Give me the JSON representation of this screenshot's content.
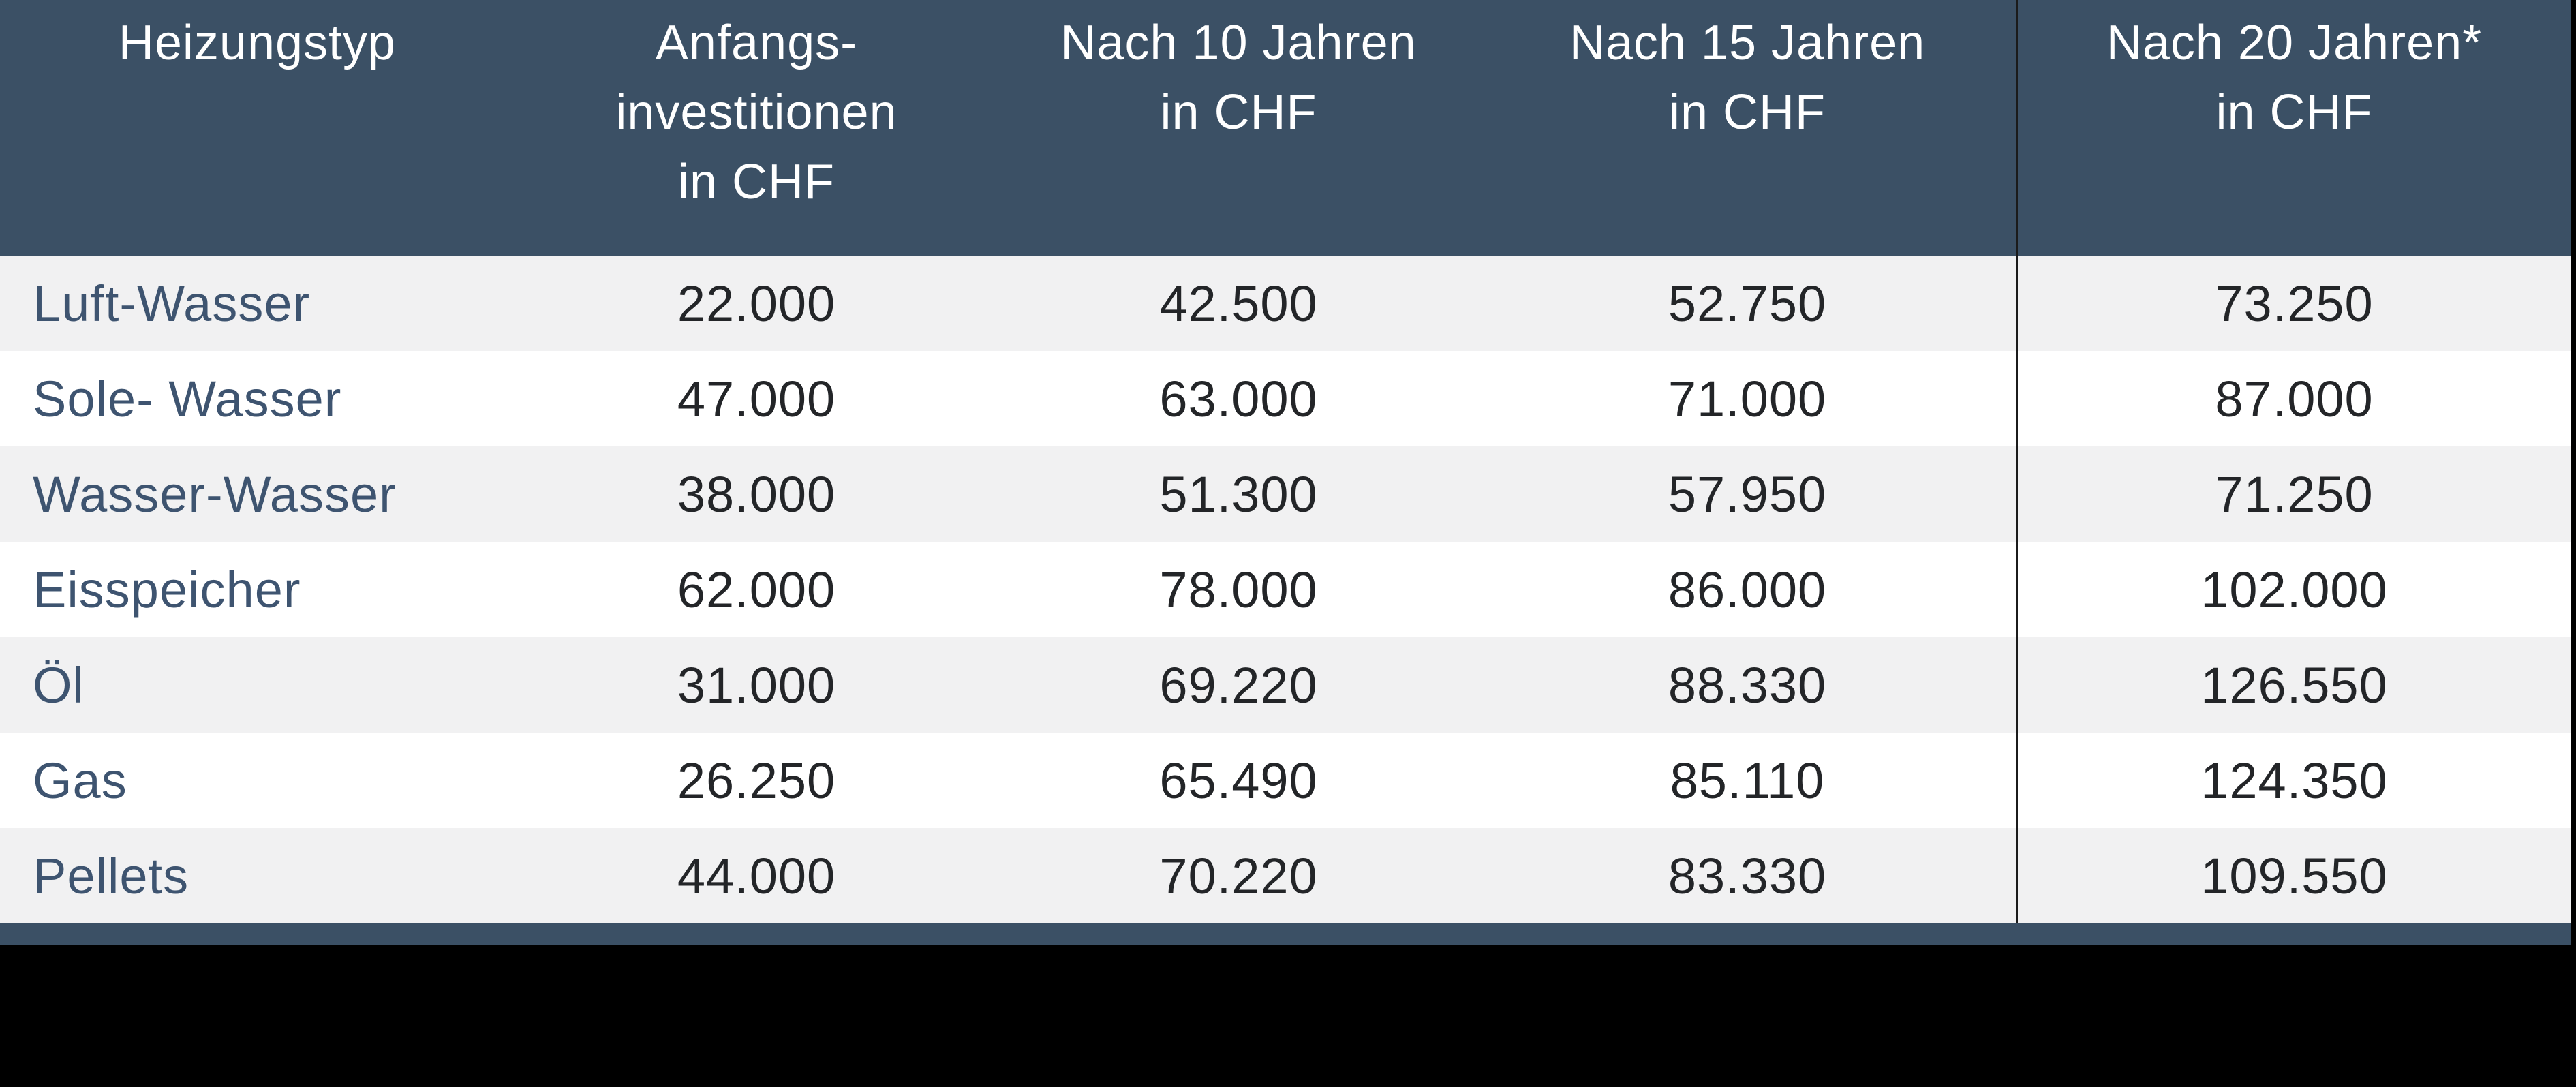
{
  "colors": {
    "header_bg": "#3B5065",
    "row_alt_bg": "#F1F1F2",
    "row_bg": "#FFFFFF",
    "label_color": "#3E5470",
    "value_color": "#232528",
    "header_text": "#FFFFFF",
    "divider": "#1B1B1B",
    "page_bg": "#000000"
  },
  "table": {
    "columns": [
      {
        "lines": [
          "Heizungstyp"
        ]
      },
      {
        "lines": [
          "Anfangs-",
          "investitionen",
          "in CHF"
        ]
      },
      {
        "lines": [
          "Nach 10 Jahren",
          "in CHF"
        ]
      },
      {
        "lines": [
          "Nach 15 Jahren",
          "in CHF"
        ]
      },
      {
        "lines": [
          "Nach 20 Jahren*",
          "in CHF"
        ]
      }
    ],
    "rows": [
      {
        "label": "Luft-Wasser",
        "values": [
          "22.000",
          "42.500",
          "52.750",
          "73.250"
        ]
      },
      {
        "label": "Sole- Wasser",
        "values": [
          "47.000",
          "63.000",
          "71.000",
          "87.000"
        ]
      },
      {
        "label": "Wasser-Wasser",
        "values": [
          "38.000",
          "51.300",
          "57.950",
          "71.250"
        ]
      },
      {
        "label": "Eisspeicher",
        "values": [
          "62.000",
          "78.000",
          "86.000",
          "102.000"
        ]
      },
      {
        "label": "Öl",
        "values": [
          "31.000",
          "69.220",
          "88.330",
          "126.550"
        ]
      },
      {
        "label": "Gas",
        "values": [
          "26.250",
          "65.490",
          "85.110",
          "124.350"
        ]
      },
      {
        "label": "Pellets",
        "values": [
          "44.000",
          "70.220",
          "83.330",
          "109.550"
        ]
      }
    ]
  },
  "chart_data": {
    "type": "table",
    "title": "",
    "columns": [
      "Heizungstyp",
      "Anfangs-investitionen in CHF",
      "Nach 10 Jahren in CHF",
      "Nach 15 Jahren in CHF",
      "Nach 20 Jahren* in CHF"
    ],
    "rows": [
      [
        "Luft-Wasser",
        22000,
        42500,
        52750,
        73250
      ],
      [
        "Sole- Wasser",
        47000,
        63000,
        71000,
        87000
      ],
      [
        "Wasser-Wasser",
        38000,
        51300,
        57950,
        71250
      ],
      [
        "Eisspeicher",
        62000,
        78000,
        86000,
        102000
      ],
      [
        "Öl",
        31000,
        69220,
        88330,
        126550
      ],
      [
        "Gas",
        26250,
        65490,
        85110,
        124350
      ],
      [
        "Pellets",
        44000,
        70220,
        83330,
        109550
      ]
    ],
    "notes": "Values in CHF; asterisk marker on 'Nach 20 Jahren*' column header; row striping alternates gray/white; black vertical rule separates last column."
  }
}
